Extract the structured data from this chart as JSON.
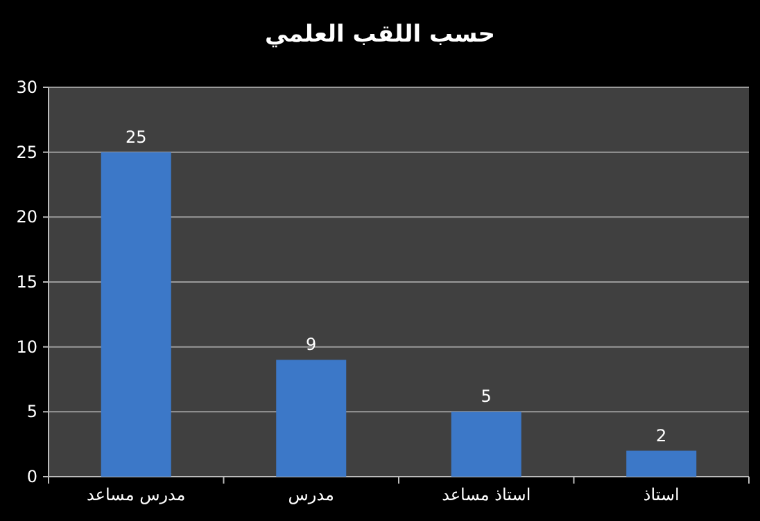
{
  "chart_data": {
    "type": "bar",
    "title": "حسب اللقب العلمي",
    "categories": [
      "مدرس مساعد",
      "مدرس",
      "استاذ مساعد",
      "استاذ"
    ],
    "values": [
      25,
      9,
      5,
      2
    ],
    "color": "#3c78c8",
    "ylim": [
      0,
      30
    ],
    "yticks": [
      0,
      5,
      10,
      15,
      20,
      25,
      30
    ],
    "grid": "y",
    "data_labels": true
  }
}
